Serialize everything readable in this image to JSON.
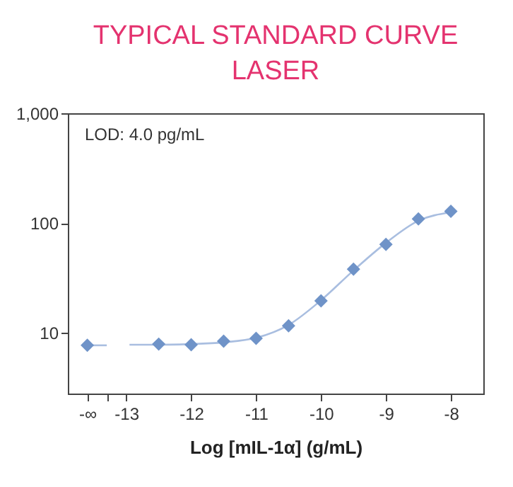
{
  "chart_data": {
    "type": "scatter",
    "title": "TYPICAL STANDARD CURVE\nLASER",
    "xlabel": "Log [mIL-1α] (g/mL)",
    "annotations": [
      "LOD: 4.0 pg/mL"
    ],
    "xlim": [
      -13.9,
      -7.5
    ],
    "xticks": [
      {
        "value": -13.6,
        "label": "-∞"
      },
      {
        "value": -13.3,
        "label": null
      },
      -13,
      -12,
      -11,
      -10,
      -9,
      -8
    ],
    "ylim": [
      2.8,
      1000
    ],
    "yticks": [
      10,
      100,
      {
        "value": 1000,
        "label": "1,000"
      }
    ],
    "log": "y",
    "grid": false,
    "marker": "diamond",
    "series": [
      {
        "type": "line",
        "marker": "none",
        "color": "#a9bee0",
        "x": [
          -13.6,
          -13.3
        ],
        "values": [
          7.7,
          7.7
        ]
      },
      {
        "type": "line",
        "marker": "none",
        "color": "#a9bee0",
        "x": [
          -12.95,
          -12.5,
          -12,
          -11.5,
          -11,
          -10.5,
          -10,
          -9.5,
          -9,
          -8.5,
          -8
        ],
        "values": [
          7.8,
          7.8,
          7.9,
          8.2,
          9,
          11.8,
          19.8,
          37,
          66,
          105,
          125
        ]
      },
      {
        "color": "#6f93c8",
        "x": [
          -13.6,
          -12.5,
          -12,
          -11.5,
          -11,
          -10.5,
          -10,
          -9.5,
          -9,
          -8.5,
          -8
        ],
        "values": [
          7.7,
          7.9,
          7.8,
          8.4,
          8.9,
          11.6,
          19.6,
          38,
          64,
          109,
          128
        ]
      }
    ]
  }
}
